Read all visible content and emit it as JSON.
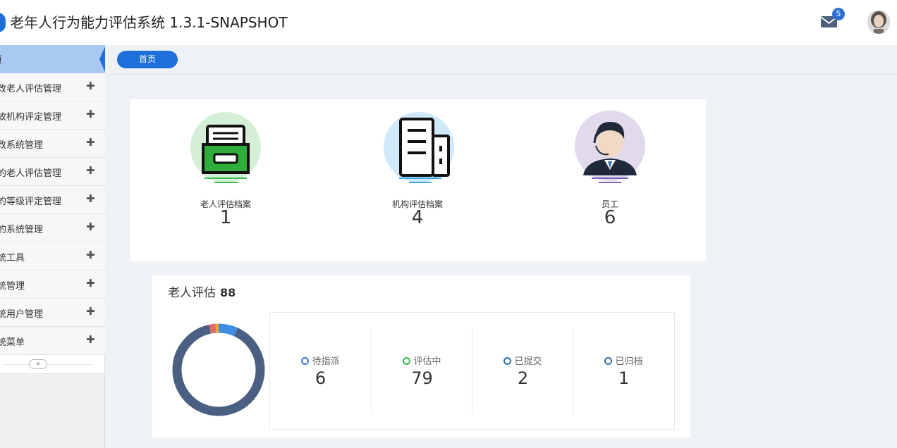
{
  "header": {
    "title": "老年人行为能力评估系统  1.3.1-SNAPSHOT",
    "mail_badge": "5",
    "mail_icon": "envelope-icon",
    "avatar_icon": "user-avatar"
  },
  "sidebar": {
    "home_label": "页",
    "items": [
      {
        "label": "改老人评估管理"
      },
      {
        "label": "故机构评定管理"
      },
      {
        "label": "改系统管理"
      },
      {
        "label": "的老人评估管理"
      },
      {
        "label": "的等级评定管理"
      },
      {
        "label": "的系统管理"
      },
      {
        "label": "统工具"
      },
      {
        "label": "统管理"
      },
      {
        "label": "统用户管理"
      },
      {
        "label": "统菜单"
      }
    ],
    "expand_symbol": "✚",
    "collapse_symbol": "«"
  },
  "breadcrumb": {
    "tab_label": "首页"
  },
  "stats": [
    {
      "label": "老人评估档案",
      "value": "1",
      "icon": "archive-box-icon"
    },
    {
      "label": "机构评估档案",
      "value": "4",
      "icon": "building-icon"
    },
    {
      "label": "员工",
      "value": "6",
      "icon": "customer-service-agent-icon"
    }
  ],
  "assessment": {
    "title": "老人评估",
    "total": "88",
    "statuses": [
      {
        "label": "待指派",
        "value": "6",
        "color": "#3a7bd5"
      },
      {
        "label": "评估中",
        "value": "79",
        "color": "#3cba54"
      },
      {
        "label": "已提交",
        "value": "2",
        "color": "#2f6ea8"
      },
      {
        "label": "已归档",
        "value": "1",
        "color": "#2f6ea8"
      }
    ]
  },
  "chart_data": {
    "type": "pie",
    "donut": true,
    "categories": [
      "待指派",
      "评估中",
      "已提交",
      "已归档"
    ],
    "values": [
      6,
      79,
      2,
      1
    ],
    "colors": [
      "#3d8de0",
      "#4a5f82",
      "#e0696f",
      "#f0a43a"
    ]
  }
}
